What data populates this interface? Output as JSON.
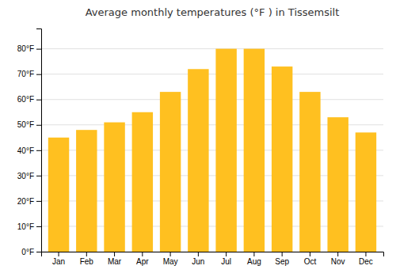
{
  "chart_data": {
    "type": "bar",
    "title": "Average monthly temperatures (°F ) in Tissemsilt",
    "categories": [
      "Jan",
      "Feb",
      "Mar",
      "Apr",
      "May",
      "Jun",
      "Jul",
      "Aug",
      "Sep",
      "Oct",
      "Nov",
      "Dec"
    ],
    "values": [
      45,
      48,
      51,
      55,
      63,
      72,
      80,
      80,
      73,
      63,
      53,
      47
    ],
    "color": "#FFC020",
    "ylim": [
      0,
      88
    ],
    "yticks": [
      {
        "value": 0,
        "label": "0°F"
      },
      {
        "value": 10,
        "label": "10°F"
      },
      {
        "value": 20,
        "label": "20°F"
      },
      {
        "value": 30,
        "label": "30°F"
      },
      {
        "value": 40,
        "label": "40°F"
      },
      {
        "value": 50,
        "label": "50°F"
      },
      {
        "value": 60,
        "label": "60°F"
      },
      {
        "value": 70,
        "label": "70°F"
      },
      {
        "value": 80,
        "label": "80°F"
      }
    ],
    "grid": true
  }
}
